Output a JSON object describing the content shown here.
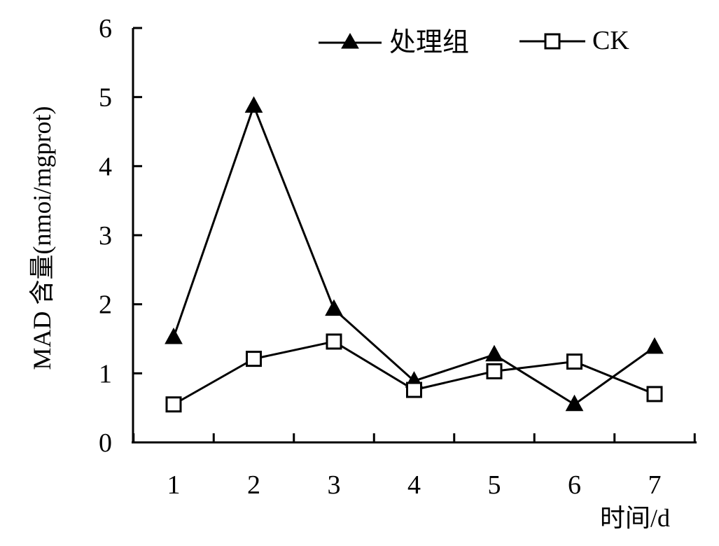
{
  "chart_data": {
    "type": "line",
    "title": "",
    "xlabel": "时间/d",
    "ylabel": "MAD 含量(nmoi/mgprot)",
    "categories": [
      "1",
      "2",
      "3",
      "4",
      "5",
      "6",
      "7"
    ],
    "ylim": [
      0,
      6
    ],
    "yticks": [
      "0",
      "1",
      "2",
      "3",
      "4",
      "5",
      "6"
    ],
    "grid": false,
    "legend_position": "top-right",
    "series": [
      {
        "name": "处理组",
        "marker": "filled-triangle",
        "color": "#000000",
        "values": [
          1.52,
          4.87,
          1.93,
          0.89,
          1.27,
          0.55,
          1.38
        ]
      },
      {
        "name": "CK",
        "marker": "open-square",
        "color": "#000000",
        "values": [
          0.55,
          1.21,
          1.46,
          0.76,
          1.03,
          1.17,
          0.7
        ]
      }
    ]
  }
}
